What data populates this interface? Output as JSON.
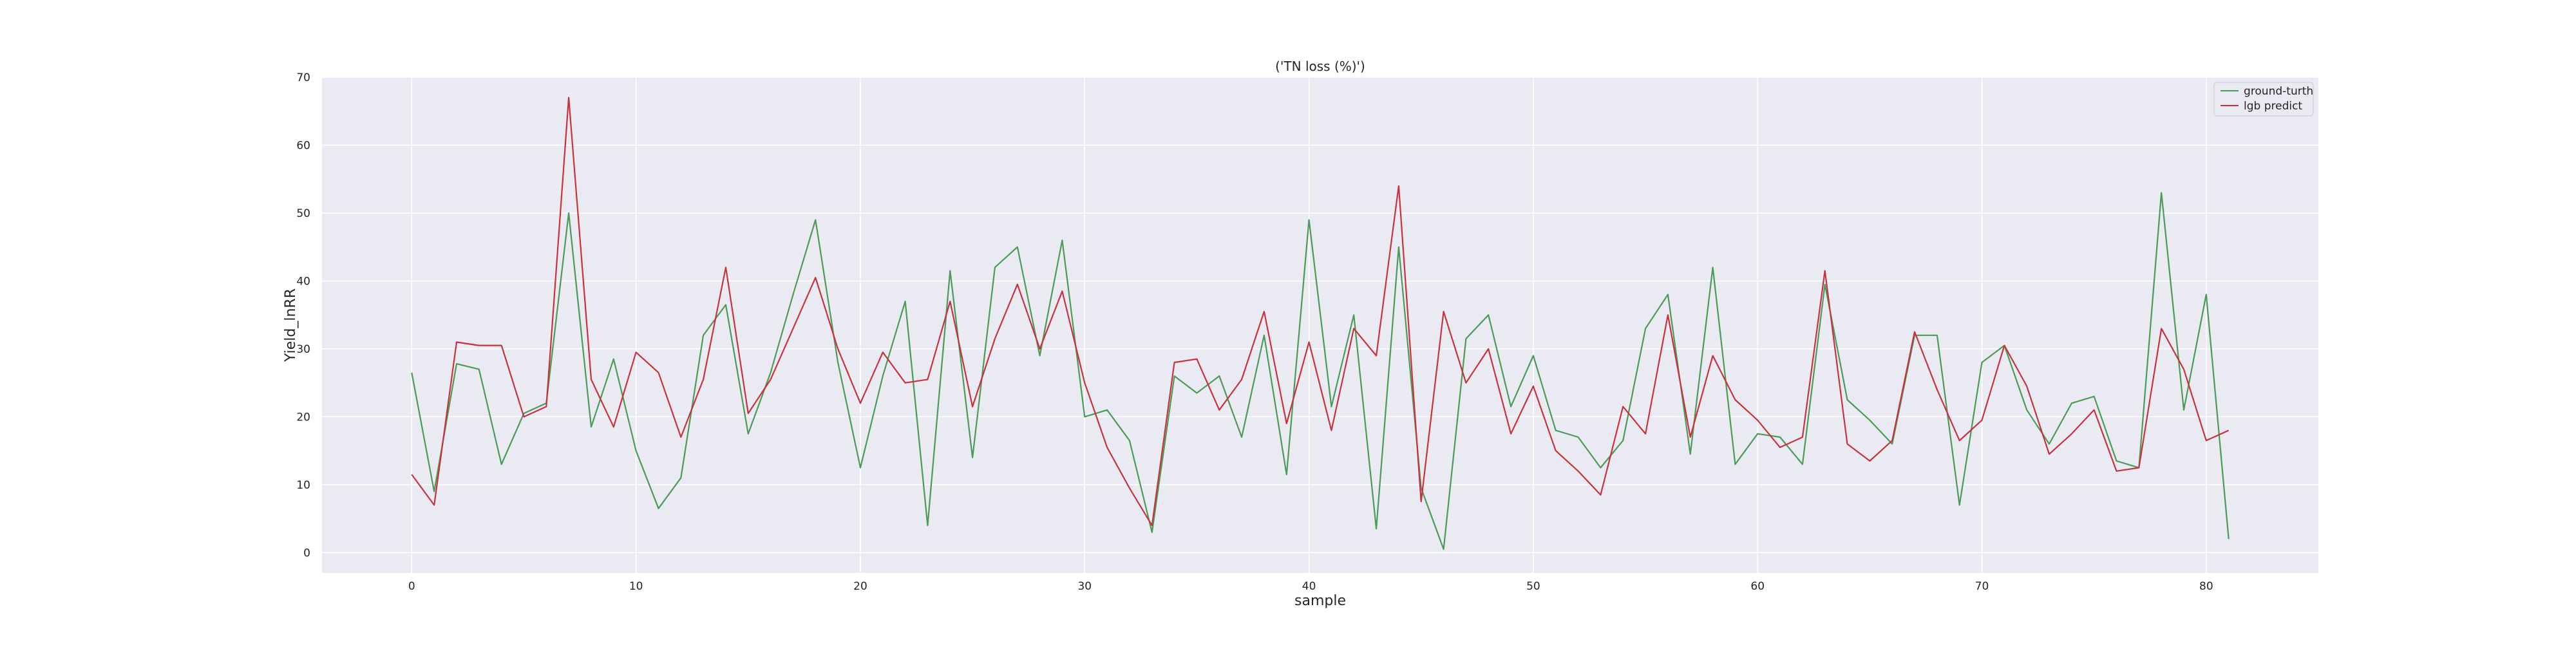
{
  "chart_data": {
    "type": "line",
    "title": "('TN loss (%)')",
    "xlabel": "sample",
    "ylabel": "Yield_lnRR",
    "xlim": [
      -4,
      85
    ],
    "ylim": [
      -3,
      70
    ],
    "xticks": [
      0,
      10,
      20,
      30,
      40,
      50,
      60,
      70,
      80
    ],
    "yticks": [
      0,
      10,
      20,
      30,
      40,
      50,
      60,
      70
    ],
    "grid": true,
    "legend_position": "top-right",
    "colors": {
      "background": "#eaeaf2",
      "grid": "#ffffff",
      "ground_truth": "#4c9a5a",
      "predict": "#c8323f"
    },
    "series": [
      {
        "name": "ground-turth",
        "values": [
          26.5,
          9.0,
          27.8,
          27.0,
          13.0,
          20.5,
          22.0,
          50.0,
          18.5,
          28.5,
          15.0,
          6.5,
          11.0,
          32.0,
          36.5,
          17.5,
          26.5,
          38.0,
          49.0,
          28.0,
          12.5,
          26.0,
          37.0,
          4.0,
          41.5,
          14.0,
          42.0,
          45.0,
          29.0,
          46.0,
          20.0,
          21.0,
          16.5,
          3.0,
          26.0,
          23.5,
          26.0,
          17.0,
          32.0,
          11.5,
          49.0,
          21.5,
          35.0,
          3.5,
          45.0,
          9.5,
          0.5,
          31.5,
          35.0,
          21.5,
          29.0,
          18.0,
          17.0,
          12.5,
          16.5,
          33.0,
          38.0,
          14.5,
          42.0,
          13.0,
          17.5,
          17.0,
          13.0,
          39.5,
          22.5,
          19.5,
          16.0,
          32.0,
          32.0,
          7.0,
          28.0,
          30.5,
          21.0,
          16.0,
          22.0,
          23.0,
          13.5,
          12.5,
          53.0,
          21.0,
          38.0,
          2.0
        ]
      },
      {
        "name": "lgb predict",
        "values": [
          11.5,
          7.0,
          31.0,
          30.5,
          30.5,
          20.0,
          21.5,
          67.0,
          25.5,
          18.5,
          29.5,
          26.5,
          17.0,
          25.5,
          42.0,
          20.5,
          25.5,
          33.0,
          40.5,
          30.0,
          22.0,
          29.5,
          25.0,
          25.5,
          37.0,
          21.5,
          31.5,
          39.5,
          30.0,
          38.5,
          25.0,
          15.5,
          9.5,
          4.0,
          28.0,
          28.5,
          21.0,
          25.5,
          35.5,
          19.0,
          31.0,
          18.0,
          33.0,
          29.0,
          54.0,
          7.5,
          35.5,
          25.0,
          30.0,
          17.5,
          24.5,
          15.0,
          12.0,
          8.5,
          21.5,
          17.5,
          35.0,
          17.0,
          29.0,
          22.5,
          19.5,
          15.5,
          17.0,
          41.5,
          16.0,
          13.5,
          16.5,
          32.5,
          24.0,
          16.5,
          19.5,
          30.5,
          24.5,
          14.5,
          17.5,
          21.0,
          12.0,
          12.5,
          33.0,
          27.0,
          16.5,
          18.0
        ]
      }
    ]
  }
}
